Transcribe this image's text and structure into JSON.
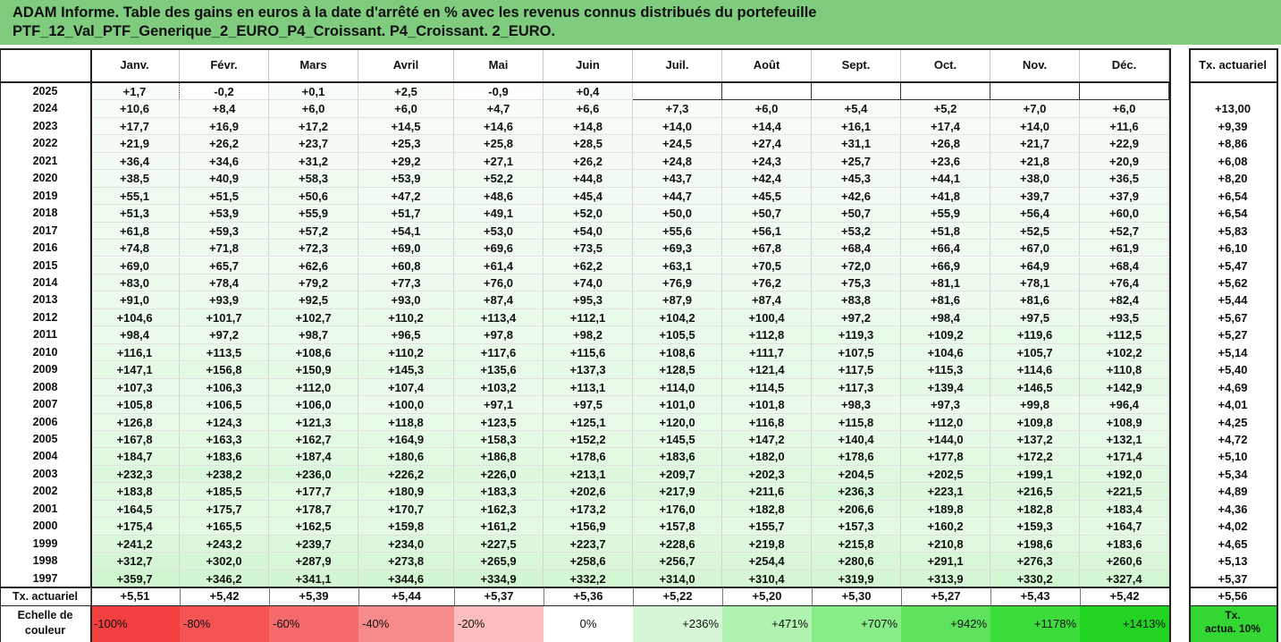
{
  "title": {
    "line1": "ADAM Informe. Table des gains en euros à la date d'arrêté en % avec les revenus connus distribués du portefeuille",
    "line2": "PTF_12_Val_PTF_Generique_2_EURO_P4_Croissant. P4_Croissant. 2_EURO."
  },
  "chart_data": {
    "type": "table",
    "months": [
      "Janv.",
      "Févr.",
      "Mars",
      "Avril",
      "Mai",
      "Juin",
      "Juil.",
      "Août",
      "Sept.",
      "Oct.",
      "Nov.",
      "Déc."
    ],
    "annual_header": "Tx. actuariel",
    "rows": [
      {
        "year": "2025",
        "values": [
          "+1,7",
          "-0,2",
          "+0,1",
          "+2,5",
          "-0,9",
          "+0,4",
          "",
          "",
          "",
          "",
          "",
          ""
        ],
        "rate": ""
      },
      {
        "year": "2024",
        "values": [
          "+10,6",
          "+8,4",
          "+6,0",
          "+6,0",
          "+4,7",
          "+6,6",
          "+7,3",
          "+6,0",
          "+5,4",
          "+5,2",
          "+7,0",
          "+6,0"
        ],
        "rate": "+13,00"
      },
      {
        "year": "2023",
        "values": [
          "+17,7",
          "+16,9",
          "+17,2",
          "+14,5",
          "+14,6",
          "+14,8",
          "+14,0",
          "+14,4",
          "+16,1",
          "+17,4",
          "+14,0",
          "+11,6"
        ],
        "rate": "+9,39"
      },
      {
        "year": "2022",
        "values": [
          "+21,9",
          "+26,2",
          "+23,7",
          "+25,3",
          "+25,8",
          "+28,5",
          "+24,5",
          "+27,4",
          "+31,1",
          "+26,8",
          "+21,7",
          "+22,9"
        ],
        "rate": "+8,86"
      },
      {
        "year": "2021",
        "values": [
          "+36,4",
          "+34,6",
          "+31,2",
          "+29,2",
          "+27,1",
          "+26,2",
          "+24,8",
          "+24,3",
          "+25,7",
          "+23,6",
          "+21,8",
          "+20,9"
        ],
        "rate": "+6,08"
      },
      {
        "year": "2020",
        "values": [
          "+38,5",
          "+40,9",
          "+58,3",
          "+53,9",
          "+52,2",
          "+44,8",
          "+43,7",
          "+42,4",
          "+45,3",
          "+44,1",
          "+38,0",
          "+36,5"
        ],
        "rate": "+8,20"
      },
      {
        "year": "2019",
        "values": [
          "+55,1",
          "+51,5",
          "+50,6",
          "+47,2",
          "+48,6",
          "+45,4",
          "+44,7",
          "+45,5",
          "+42,6",
          "+41,8",
          "+39,7",
          "+37,9"
        ],
        "rate": "+6,54"
      },
      {
        "year": "2018",
        "values": [
          "+51,3",
          "+53,9",
          "+55,9",
          "+51,7",
          "+49,1",
          "+52,0",
          "+50,0",
          "+50,7",
          "+50,7",
          "+55,9",
          "+56,4",
          "+60,0"
        ],
        "rate": "+6,54"
      },
      {
        "year": "2017",
        "values": [
          "+61,8",
          "+59,3",
          "+57,2",
          "+54,1",
          "+53,0",
          "+54,0",
          "+55,6",
          "+56,1",
          "+53,2",
          "+51,8",
          "+52,5",
          "+52,7"
        ],
        "rate": "+5,83"
      },
      {
        "year": "2016",
        "values": [
          "+74,8",
          "+71,8",
          "+72,3",
          "+69,0",
          "+69,6",
          "+73,5",
          "+69,3",
          "+67,8",
          "+68,4",
          "+66,4",
          "+67,0",
          "+61,9"
        ],
        "rate": "+6,10"
      },
      {
        "year": "2015",
        "values": [
          "+69,0",
          "+65,7",
          "+62,6",
          "+60,8",
          "+61,4",
          "+62,2",
          "+63,1",
          "+70,5",
          "+72,0",
          "+66,9",
          "+64,9",
          "+68,4"
        ],
        "rate": "+5,47"
      },
      {
        "year": "2014",
        "values": [
          "+83,0",
          "+78,4",
          "+79,2",
          "+77,3",
          "+76,0",
          "+74,0",
          "+76,9",
          "+76,2",
          "+75,3",
          "+81,1",
          "+78,1",
          "+76,4"
        ],
        "rate": "+5,62"
      },
      {
        "year": "2013",
        "values": [
          "+91,0",
          "+93,9",
          "+92,5",
          "+93,0",
          "+87,4",
          "+95,3",
          "+87,9",
          "+87,4",
          "+83,8",
          "+81,6",
          "+81,6",
          "+82,4"
        ],
        "rate": "+5,44"
      },
      {
        "year": "2012",
        "values": [
          "+104,6",
          "+101,7",
          "+102,7",
          "+110,2",
          "+113,4",
          "+112,1",
          "+104,2",
          "+100,4",
          "+97,2",
          "+98,4",
          "+97,5",
          "+93,5"
        ],
        "rate": "+5,67"
      },
      {
        "year": "2011",
        "values": [
          "+98,4",
          "+97,2",
          "+98,7",
          "+96,5",
          "+97,8",
          "+98,2",
          "+105,5",
          "+112,8",
          "+119,3",
          "+109,2",
          "+119,6",
          "+112,5"
        ],
        "rate": "+5,27"
      },
      {
        "year": "2010",
        "values": [
          "+116,1",
          "+113,5",
          "+108,6",
          "+110,2",
          "+117,6",
          "+115,6",
          "+108,6",
          "+111,7",
          "+107,5",
          "+104,6",
          "+105,7",
          "+102,2"
        ],
        "rate": "+5,14"
      },
      {
        "year": "2009",
        "values": [
          "+147,1",
          "+156,8",
          "+150,9",
          "+145,3",
          "+135,6",
          "+137,3",
          "+128,5",
          "+121,4",
          "+117,5",
          "+115,3",
          "+114,6",
          "+110,8"
        ],
        "rate": "+5,40"
      },
      {
        "year": "2008",
        "values": [
          "+107,3",
          "+106,3",
          "+112,0",
          "+107,4",
          "+103,2",
          "+113,1",
          "+114,0",
          "+114,5",
          "+117,3",
          "+139,4",
          "+146,5",
          "+142,9"
        ],
        "rate": "+4,69"
      },
      {
        "year": "2007",
        "values": [
          "+105,8",
          "+106,5",
          "+106,0",
          "+100,0",
          "+97,1",
          "+97,5",
          "+101,0",
          "+101,8",
          "+98,3",
          "+97,3",
          "+99,8",
          "+96,4"
        ],
        "rate": "+4,01"
      },
      {
        "year": "2006",
        "values": [
          "+126,8",
          "+124,3",
          "+121,3",
          "+118,8",
          "+123,5",
          "+125,1",
          "+120,0",
          "+116,8",
          "+115,8",
          "+112,0",
          "+109,8",
          "+108,9"
        ],
        "rate": "+4,25"
      },
      {
        "year": "2005",
        "values": [
          "+167,8",
          "+163,3",
          "+162,7",
          "+164,9",
          "+158,3",
          "+152,2",
          "+145,5",
          "+147,2",
          "+140,4",
          "+144,0",
          "+137,2",
          "+132,1"
        ],
        "rate": "+4,72"
      },
      {
        "year": "2004",
        "values": [
          "+184,7",
          "+183,6",
          "+187,4",
          "+180,6",
          "+186,8",
          "+178,6",
          "+183,6",
          "+182,0",
          "+178,6",
          "+177,8",
          "+172,2",
          "+171,4"
        ],
        "rate": "+5,10"
      },
      {
        "year": "2003",
        "values": [
          "+232,3",
          "+238,2",
          "+236,0",
          "+226,2",
          "+226,0",
          "+213,1",
          "+209,7",
          "+202,3",
          "+204,5",
          "+202,5",
          "+199,1",
          "+192,0"
        ],
        "rate": "+5,34"
      },
      {
        "year": "2002",
        "values": [
          "+183,8",
          "+185,5",
          "+177,7",
          "+180,9",
          "+183,3",
          "+202,6",
          "+217,9",
          "+211,6",
          "+236,3",
          "+223,1",
          "+216,5",
          "+221,5"
        ],
        "rate": "+4,89"
      },
      {
        "year": "2001",
        "values": [
          "+164,5",
          "+175,7",
          "+178,7",
          "+170,7",
          "+162,3",
          "+173,2",
          "+176,0",
          "+182,8",
          "+206,6",
          "+189,8",
          "+182,8",
          "+183,4"
        ],
        "rate": "+4,36"
      },
      {
        "year": "2000",
        "values": [
          "+175,4",
          "+165,5",
          "+162,5",
          "+159,8",
          "+161,2",
          "+156,9",
          "+157,8",
          "+155,7",
          "+157,3",
          "+160,2",
          "+159,3",
          "+164,7"
        ],
        "rate": "+4,02"
      },
      {
        "year": "1999",
        "values": [
          "+241,2",
          "+243,2",
          "+239,7",
          "+234,0",
          "+227,5",
          "+223,7",
          "+228,6",
          "+219,8",
          "+215,8",
          "+210,8",
          "+198,6",
          "+183,6"
        ],
        "rate": "+4,65"
      },
      {
        "year": "1998",
        "values": [
          "+312,7",
          "+302,0",
          "+287,9",
          "+273,8",
          "+265,9",
          "+258,6",
          "+256,7",
          "+254,4",
          "+280,6",
          "+291,1",
          "+276,3",
          "+260,6"
        ],
        "rate": "+5,13"
      },
      {
        "year": "1997",
        "values": [
          "+359,7",
          "+346,2",
          "+341,1",
          "+344,6",
          "+334,9",
          "+332,2",
          "+314,0",
          "+310,4",
          "+319,9",
          "+313,9",
          "+330,2",
          "+327,4"
        ],
        "rate": "+5,37"
      }
    ],
    "total_row": {
      "label": "Tx. actuariel",
      "values": [
        "+5,51",
        "+5,42",
        "+5,39",
        "+5,44",
        "+5,37",
        "+5,36",
        "+5,22",
        "+5,20",
        "+5,30",
        "+5,27",
        "+5,43",
        "+5,42"
      ],
      "rate": "+5,56"
    },
    "color_scale": {
      "label_line1": "Echelle de",
      "label_line2": "couleur",
      "stops": [
        {
          "label": "-100%",
          "color": "#f23f3f"
        },
        {
          "label": "-80%",
          "color": "#f45454"
        },
        {
          "label": "-60%",
          "color": "#f56a6a"
        },
        {
          "label": "-40%",
          "color": "#f78a8a"
        },
        {
          "label": "-20%",
          "color": "#fbbdbd"
        },
        {
          "label": "0%",
          "color": "#ffffff"
        },
        {
          "label": "+236%",
          "color": "#d6f7d6"
        },
        {
          "label": "+471%",
          "color": "#b0f2b0"
        },
        {
          "label": "+707%",
          "color": "#88ec88"
        },
        {
          "label": "+942%",
          "color": "#5fe35f"
        },
        {
          "label": "+1178%",
          "color": "#3ddc3d"
        },
        {
          "label": "+1413%",
          "color": "#22d422"
        }
      ],
      "rate_label_line1": "Tx.",
      "rate_label_line2": "actua. 10%",
      "rate_color": "#33d633"
    },
    "scale_min": -100,
    "scale_max": 1413
  }
}
